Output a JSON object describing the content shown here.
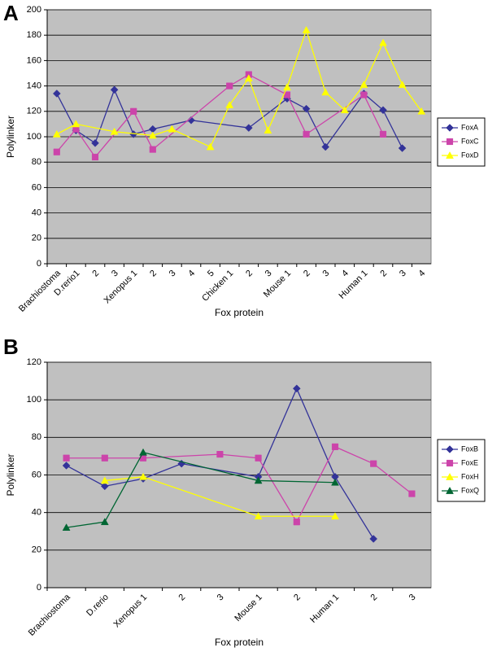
{
  "chart_data": [
    {
      "type": "line",
      "panel": "A",
      "x_label": "Fox protein",
      "y_label": "Polylinker",
      "categories": [
        "Brachiostoma",
        "D.rerio1",
        "2",
        "3",
        "Xenopus 1",
        "2",
        "3",
        "4",
        "5",
        "Chicken 1",
        "2",
        "3",
        "Mouse 1",
        "2",
        "3",
        "4",
        "Human 1",
        "2",
        "3",
        "4"
      ],
      "ylim": [
        0,
        200
      ],
      "yticks": [
        0,
        20,
        40,
        60,
        80,
        100,
        120,
        140,
        160,
        180,
        200
      ],
      "grid": true,
      "legend": "right",
      "span_gaps": true,
      "series": [
        {
          "name": "FoxA",
          "color": "#333399",
          "marker": "diamond",
          "values": [
            134,
            105,
            95,
            137,
            102,
            106,
            null,
            113,
            null,
            null,
            107,
            null,
            130,
            122,
            92,
            null,
            134,
            121,
            91,
            null
          ]
        },
        {
          "name": "FoxC",
          "color": "#cc44aa",
          "marker": "square",
          "values": [
            88,
            106,
            84,
            null,
            120,
            90,
            null,
            null,
            null,
            140,
            149,
            null,
            133,
            102,
            null,
            null,
            133,
            102,
            null,
            null
          ]
        },
        {
          "name": "FoxD",
          "color": "#ffff00",
          "marker": "triangle",
          "values": [
            102,
            110,
            null,
            104,
            null,
            101,
            106,
            null,
            92,
            125,
            146,
            105,
            139,
            184,
            135,
            121,
            141,
            174,
            141,
            120
          ]
        }
      ]
    },
    {
      "type": "line",
      "panel": "B",
      "x_label": "Fox protein",
      "y_label": "Polylinker",
      "categories": [
        "Brachiostoma",
        "D.rerio",
        "Xenopus 1",
        "2",
        "3",
        "Mouse 1",
        "2",
        "Human 1",
        "2",
        "3"
      ],
      "ylim": [
        0,
        120
      ],
      "yticks": [
        0,
        20,
        40,
        60,
        80,
        100,
        120
      ],
      "grid": true,
      "legend": "right",
      "span_gaps": true,
      "series": [
        {
          "name": "FoxB",
          "color": "#333399",
          "marker": "diamond",
          "values": [
            65,
            54,
            58,
            66,
            null,
            59,
            106,
            59,
            26,
            null
          ]
        },
        {
          "name": "FoxE",
          "color": "#cc44aa",
          "marker": "square",
          "values": [
            69,
            69,
            69,
            null,
            71,
            69,
            35,
            75,
            66,
            50
          ]
        },
        {
          "name": "FoxH",
          "color": "#ffff00",
          "marker": "triangle",
          "values": [
            null,
            57,
            59,
            null,
            null,
            38,
            null,
            38,
            null,
            null
          ]
        },
        {
          "name": "FoxQ",
          "color": "#006633",
          "marker": "triangle",
          "values": [
            32,
            35,
            72,
            null,
            null,
            57,
            null,
            56,
            null,
            null
          ]
        }
      ]
    }
  ]
}
